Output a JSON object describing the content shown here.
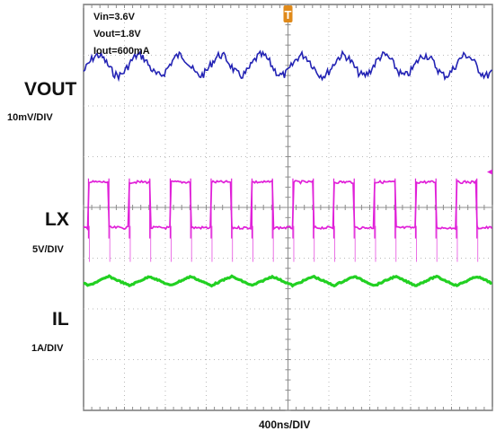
{
  "chart_data": {
    "type": "line",
    "title": "",
    "xlabel": "400ns/DIV",
    "time_per_div_ns": 400,
    "grid": true,
    "conditions": [
      "Vin=3.6V",
      "Vout=1.8V",
      "Iout=600mA"
    ],
    "trigger_marker": "T",
    "trigger_color": "#e08a1a",
    "series": [
      {
        "name": "VOUT",
        "scale": "10mV/DIV",
        "color": "#2323b4",
        "shape": "ripple",
        "baseline_div": 1.2,
        "amplitude_div": 0.2,
        "period_div": 1.0,
        "phase": 0.1
      },
      {
        "name": "LX",
        "scale": "5V/DIV",
        "color": "#e020d8",
        "shape": "square",
        "high_div": 3.5,
        "low_div": 4.4,
        "period_div": 1.0,
        "duty": 0.5,
        "rise_offset_div": 0.12
      },
      {
        "name": "IL",
        "scale": "1A/DIV",
        "color": "#22d022",
        "shape": "triangle",
        "center_div": 5.45,
        "amplitude_div": 0.09,
        "period_div": 1.0,
        "phase": 0.12
      }
    ]
  }
}
